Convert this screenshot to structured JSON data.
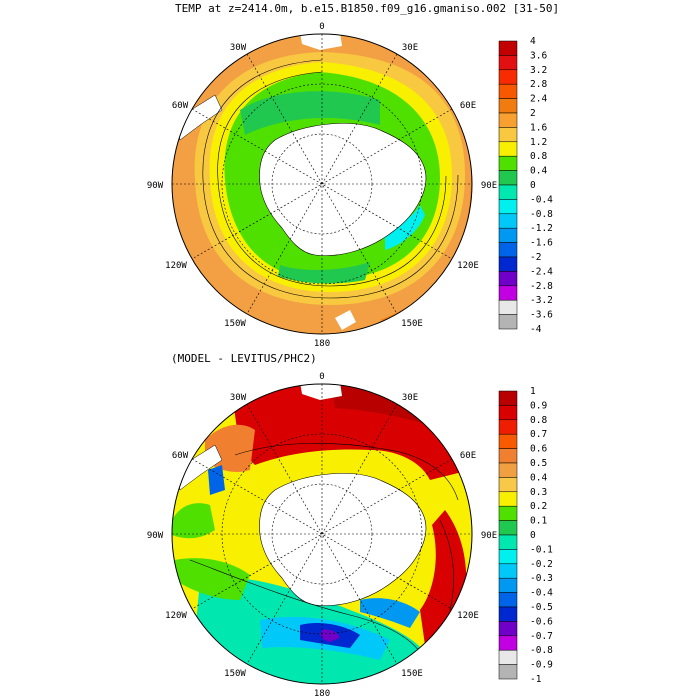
{
  "panels": [
    {
      "title": "TEMP at z=2414.0m, b.e15.B1850.f09_g16.gmaniso.002 [31-50]",
      "longitude_labels": {
        "top": "0",
        "upper_left": "30W",
        "upper_right": "30E",
        "left_upper": "60W",
        "right_upper": "60E",
        "left": "90W",
        "right": "90E",
        "left_lower": "120W",
        "right_lower": "120E",
        "lower_left": "150W",
        "lower_right": "150E",
        "bottom": "180"
      },
      "colorbar": {
        "labels": [
          "4",
          "3.6",
          "3.2",
          "2.8",
          "2.4",
          "2",
          "1.6",
          "1.2",
          "0.8",
          "0.4",
          "0",
          "-0.4",
          "-0.8",
          "-1.2",
          "-1.6",
          "-2",
          "-2.4",
          "-2.8",
          "-3.2",
          "-3.6",
          "-4"
        ],
        "colors": [
          "#c20000",
          "#e21010",
          "#f82a00",
          "#f85800",
          "#f07c10",
          "#f8a030",
          "#f8c840",
          "#f8f000",
          "#50e000",
          "#20c850",
          "#00e8b0",
          "#00f0f0",
          "#00c8f8",
          "#0098f0",
          "#0064e8",
          "#0028d0",
          "#7000c8",
          "#c000e0",
          "#e8e8e8",
          "#b4b4b4"
        ]
      },
      "map": {
        "ocean_color": "#f2a043",
        "band_colors": [
          "#f8c840",
          "#f8f000",
          "#50e000"
        ],
        "land_color": "#ffffff"
      }
    },
    {
      "title": "(MODEL - LEVITUS/PHC2)",
      "longitude_labels": {
        "top": "0",
        "upper_left": "30W",
        "upper_right": "30E",
        "left_upper": "60W",
        "right_upper": "60E",
        "left": "90W",
        "right": "90E",
        "left_lower": "120W",
        "right_lower": "120E",
        "lower_left": "150W",
        "lower_right": "150E",
        "bottom": "180"
      },
      "colorbar": {
        "labels": [
          "1",
          "0.9",
          "0.8",
          "0.7",
          "0.6",
          "0.5",
          "0.4",
          "0.3",
          "0.2",
          "0.1",
          "0",
          "-0.1",
          "-0.2",
          "-0.3",
          "-0.4",
          "-0.5",
          "-0.6",
          "-0.7",
          "-0.8",
          "-0.9",
          "-1"
        ],
        "colors": [
          "#b80000",
          "#d80000",
          "#f01e00",
          "#f85a00",
          "#f08030",
          "#f0a040",
          "#f8c848",
          "#f8f000",
          "#50e000",
          "#20c850",
          "#00e8b0",
          "#00f0f0",
          "#00c8f8",
          "#0098f0",
          "#0064e8",
          "#0028d0",
          "#7000c8",
          "#c000e0",
          "#e8e8e8",
          "#b4b4b4"
        ]
      },
      "map": {
        "ocean_color": "#f8f000",
        "land_color": "#ffffff"
      }
    }
  ]
}
